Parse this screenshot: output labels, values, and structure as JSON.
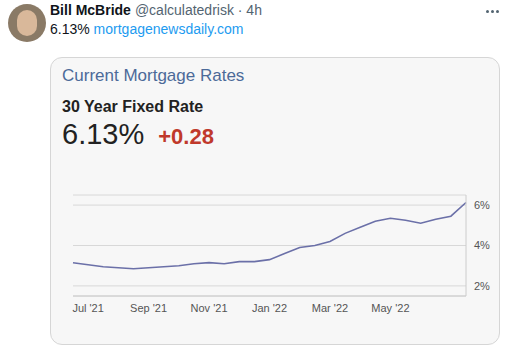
{
  "tweet": {
    "name": "Bill McBride",
    "meta": "@calculatedrisk · 4h",
    "text": "6.13%",
    "link": "mortgagenewsdaily.com"
  },
  "chart_data": {
    "type": "line",
    "title": "Current Mortgage Rates",
    "subtitle": "30 Year Fixed Rate",
    "annotations": [
      "6.13%",
      "+0.28"
    ],
    "categories": [
      null,
      "Jul '21",
      null,
      null,
      null,
      "Sep '21",
      null,
      null,
      null,
      "Nov '21",
      null,
      null,
      null,
      "Jan '22",
      null,
      null,
      null,
      "Mar '22",
      null,
      null,
      null,
      "May '22",
      null,
      null,
      null,
      null,
      null
    ],
    "series": [
      {
        "name": "30 Year Fixed Rate",
        "color": "#6b70a8",
        "values": [
          3.15,
          3.05,
          2.95,
          2.9,
          2.85,
          2.9,
          2.95,
          3.0,
          3.1,
          3.15,
          3.1,
          3.2,
          3.2,
          3.3,
          3.6,
          3.9,
          4.0,
          4.2,
          4.6,
          4.9,
          5.2,
          5.35,
          5.25,
          5.1,
          5.3,
          5.45,
          6.13
        ]
      }
    ],
    "ylim": [
      1.5,
      6.5
    ],
    "yticks": [
      {
        "value": 2,
        "label": "2%"
      },
      {
        "value": 4,
        "label": "4%"
      },
      {
        "value": 6,
        "label": "6%"
      }
    ],
    "grid": true
  }
}
